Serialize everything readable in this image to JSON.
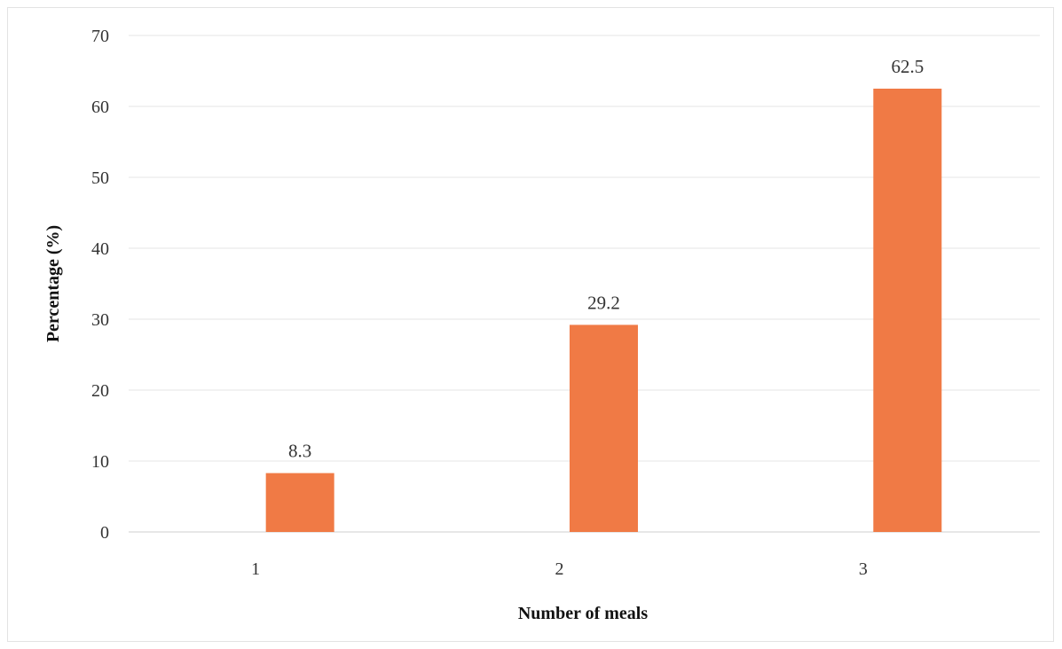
{
  "chart_data": {
    "type": "bar",
    "categories": [
      "1",
      "2",
      "3"
    ],
    "values": [
      8.3,
      29.2,
      62.5
    ],
    "data_labels": [
      "8.3",
      "29.2",
      "62.5"
    ],
    "title": "",
    "xlabel": "Number of meals",
    "ylabel": "Percentage (%)",
    "ylim": [
      0,
      70
    ],
    "yticks": [
      "0",
      "10",
      "20",
      "30",
      "40",
      "50",
      "60",
      "70"
    ],
    "grid": true,
    "legend": "none",
    "colors": {
      "bar": "#F07A45",
      "grid": "#e6e6e6",
      "axis": "#cfcfcf"
    }
  }
}
